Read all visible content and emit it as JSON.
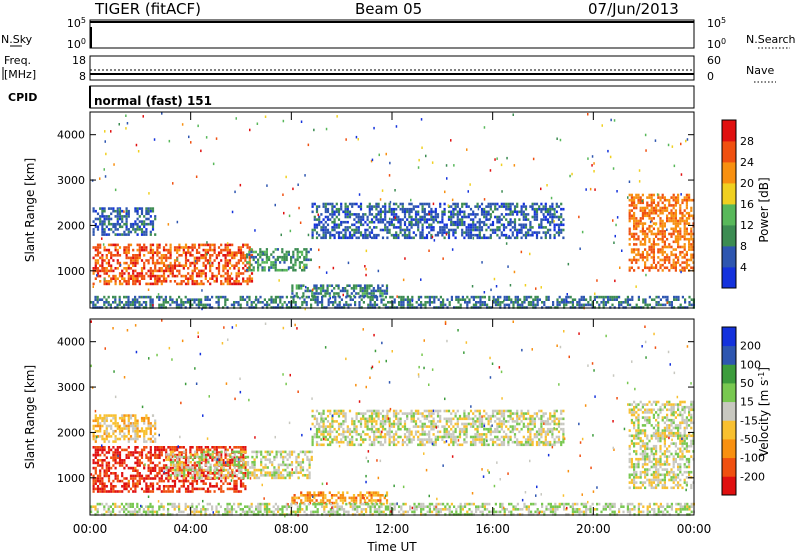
{
  "header": {
    "station": "TIGER (fitACF)",
    "beam": "Beam 05",
    "date": "07/Jun/2013"
  },
  "strips": {
    "nsky_label": "N.Sky",
    "nsearch_label": "N.Search",
    "freq_label_1": "Freq.",
    "freq_label_2": "[MHz]",
    "nave_label": "Nave",
    "cpid_label": "CPID",
    "cpid_value": "normal (fast) 151",
    "nsky_ticks": [
      "10^5",
      "10^0"
    ],
    "nsearch_ticks": [
      "10^5",
      "10^0"
    ],
    "freq_ticks": [
      "18",
      "8"
    ],
    "nave_ticks": [
      "60",
      "0"
    ]
  },
  "colors": {
    "power_scale": [
      "#1432dc",
      "#2e56b0",
      "#3c8c52",
      "#58b85a",
      "#f0d020",
      "#f89010",
      "#f05010",
      "#e01010"
    ],
    "velocity_scale": [
      "#e01010",
      "#f05010",
      "#f89010",
      "#f8c030",
      "#c8c8c0",
      "#78c850",
      "#3c9c3c",
      "#2e56b0",
      "#1432dc"
    ]
  },
  "chart_data": [
    {
      "type": "heatmap",
      "name": "power",
      "ylabel": "Slant Range [km]",
      "xlabel": "",
      "colorbar_label": "Power [dB]",
      "colorbar_ticks": [
        "28",
        "24",
        "20",
        "16",
        "12",
        "8",
        "4"
      ],
      "colorbar_range": [
        0,
        32
      ],
      "x_ticks": [
        "00:00",
        "04:00",
        "08:00",
        "12:00",
        "16:00",
        "20:00",
        "00:00"
      ],
      "xlim_hours": [
        0,
        24
      ],
      "y_ticks": [
        "4000",
        "3000",
        "2000",
        "1000"
      ],
      "ylim_km": [
        180,
        4500
      ],
      "echo_regions": [
        {
          "start_h": 0.1,
          "end_h": 6.4,
          "range_km": [
            700,
            1600
          ],
          "level": 26
        },
        {
          "start_h": 0.1,
          "end_h": 2.6,
          "range_km": [
            1800,
            2400
          ],
          "level": 6
        },
        {
          "start_h": 6.2,
          "end_h": 8.8,
          "range_km": [
            1000,
            1500
          ],
          "level": 10
        },
        {
          "start_h": 8.8,
          "end_h": 18.8,
          "range_km": [
            1700,
            2500
          ],
          "level": 6
        },
        {
          "start_h": 8.0,
          "end_h": 11.8,
          "range_km": [
            450,
            700
          ],
          "level": 9
        },
        {
          "start_h": 21.4,
          "end_h": 24.0,
          "range_km": [
            1000,
            2700
          ],
          "level": 24
        },
        {
          "start_h": 0.0,
          "end_h": 24.0,
          "range_km": [
            200,
            450
          ],
          "level": 8
        }
      ]
    },
    {
      "type": "heatmap",
      "name": "velocity",
      "ylabel": "Slant Range [km]",
      "xlabel": "Time UT",
      "colorbar_label": "Velocity [m s^-1]",
      "colorbar_ticks": [
        "200",
        "100",
        "50",
        "15",
        "-15",
        "-50",
        "-100",
        "-200"
      ],
      "colorbar_range": [
        -250,
        250
      ],
      "x_ticks": [
        "00:00",
        "04:00",
        "08:00",
        "12:00",
        "16:00",
        "20:00",
        "00:00"
      ],
      "xlim_hours": [
        0,
        24
      ],
      "y_ticks": [
        "4000",
        "3000",
        "2000",
        "1000"
      ],
      "ylim_km": [
        180,
        4500
      ],
      "echo_regions": [
        {
          "start_h": 0.1,
          "end_h": 6.2,
          "range_km": [
            700,
            1700
          ],
          "level": -200
        },
        {
          "start_h": 0.1,
          "end_h": 2.6,
          "range_km": [
            1800,
            2400
          ],
          "level": -50
        },
        {
          "start_h": 3.0,
          "end_h": 8.8,
          "range_km": [
            1000,
            1600
          ],
          "level": 0
        },
        {
          "start_h": 8.8,
          "end_h": 18.8,
          "range_km": [
            1700,
            2500
          ],
          "level": 0
        },
        {
          "start_h": 8.0,
          "end_h": 11.8,
          "range_km": [
            450,
            700
          ],
          "level": -100
        },
        {
          "start_h": 21.4,
          "end_h": 24.0,
          "range_km": [
            800,
            2700
          ],
          "level": 0
        },
        {
          "start_h": 0.0,
          "end_h": 24.0,
          "range_km": [
            200,
            450
          ],
          "level": 20
        }
      ]
    }
  ]
}
